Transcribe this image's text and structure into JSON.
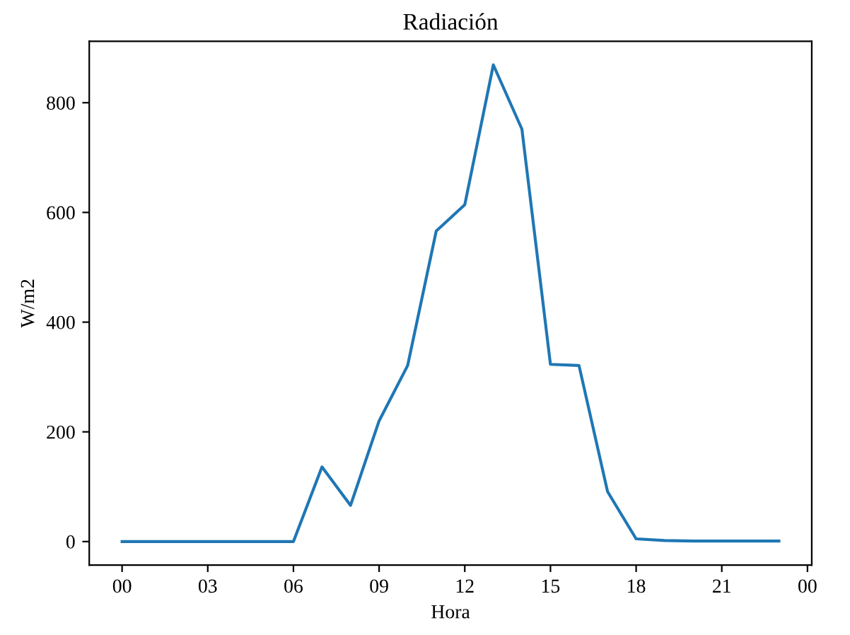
{
  "chart_data": {
    "type": "line",
    "title": "Radiación",
    "xlabel": "Hora",
    "ylabel": "W/m2",
    "x": [
      0,
      1,
      2,
      3,
      4,
      5,
      6,
      7,
      8,
      9,
      10,
      11,
      12,
      13,
      14,
      15,
      16,
      17,
      18,
      19,
      20,
      21,
      22,
      23
    ],
    "series": [
      {
        "color": "#1f77b4",
        "values": [
          0,
          0,
          0,
          0,
          0,
          0,
          0,
          136,
          66,
          220,
          321,
          566,
          614,
          869,
          752,
          323,
          321,
          91,
          5,
          2,
          1,
          1,
          1,
          1
        ]
      }
    ],
    "xlim": [
      -1.15,
      24.15
    ],
    "xticks": [
      {
        "value": 0,
        "label": "00"
      },
      {
        "value": 3,
        "label": "03"
      },
      {
        "value": 6,
        "label": "06"
      },
      {
        "value": 9,
        "label": "09"
      },
      {
        "value": 12,
        "label": "12"
      },
      {
        "value": 15,
        "label": "15"
      },
      {
        "value": 18,
        "label": "18"
      },
      {
        "value": 21,
        "label": "21"
      },
      {
        "value": 24,
        "label": "00"
      }
    ],
    "ylim": [
      -43,
      912
    ],
    "yticks": [
      0,
      200,
      400,
      600,
      800
    ],
    "grid": false,
    "marker": "none",
    "line_style": "solid"
  }
}
